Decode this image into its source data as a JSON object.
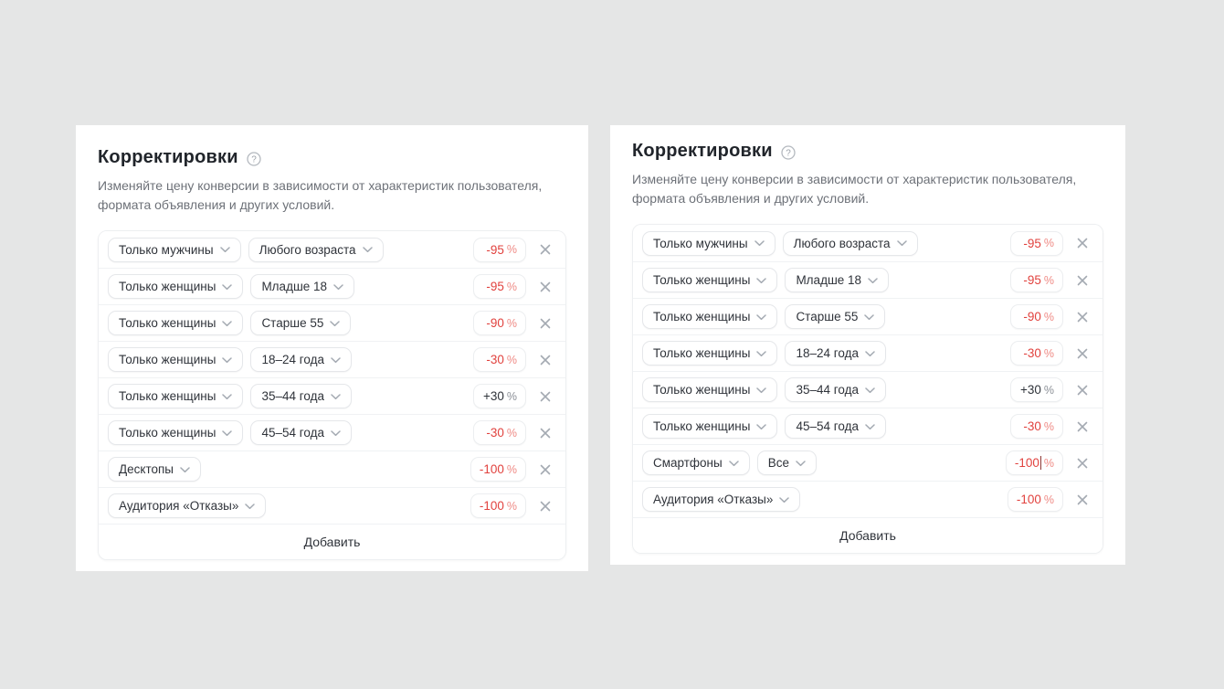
{
  "page": {
    "background": "#e5e6e6"
  },
  "ui": {
    "percent_suffix": "%",
    "colors": {
      "negative": "#e1423e",
      "positive": "#2f333a",
      "icon_gray": "#a4aab2"
    }
  },
  "panels": [
    {
      "title": "Корректировки",
      "help_icon": "question-circle-icon",
      "description": "Изменяйте цену конверсии в зависимости от характеристик пользователя, формата объявления и других условий.",
      "add_label": "Добавить",
      "rows": [
        {
          "chips": [
            "Только мужчины",
            "Любого возраста"
          ],
          "value": "-95",
          "sign": "negative",
          "focused": false
        },
        {
          "chips": [
            "Только женщины",
            "Младше 18"
          ],
          "value": "-95",
          "sign": "negative",
          "focused": false
        },
        {
          "chips": [
            "Только женщины",
            "Старше 55"
          ],
          "value": "-90",
          "sign": "negative",
          "focused": false
        },
        {
          "chips": [
            "Только женщины",
            "18–24 года"
          ],
          "value": "-30",
          "sign": "negative",
          "focused": false
        },
        {
          "chips": [
            "Только женщины",
            "35–44 года"
          ],
          "value": "+30",
          "sign": "positive",
          "focused": false
        },
        {
          "chips": [
            "Только женщины",
            "45–54 года"
          ],
          "value": "-30",
          "sign": "negative",
          "focused": false
        },
        {
          "chips": [
            "Десктопы"
          ],
          "value": "-100",
          "sign": "negative",
          "focused": false
        },
        {
          "chips": [
            "Аудитория «Отказы»"
          ],
          "value": "-100",
          "sign": "negative",
          "focused": false
        }
      ]
    },
    {
      "title": "Корректировки",
      "help_icon": "question-circle-icon",
      "description": "Изменяйте цену конверсии в зависимости от характеристик пользователя, формата объявления и других условий.",
      "add_label": "Добавить",
      "rows": [
        {
          "chips": [
            "Только мужчины",
            "Любого возраста"
          ],
          "value": "-95",
          "sign": "negative",
          "focused": false
        },
        {
          "chips": [
            "Только женщины",
            "Младше 18"
          ],
          "value": "-95",
          "sign": "negative",
          "focused": false
        },
        {
          "chips": [
            "Только женщины",
            "Старше 55"
          ],
          "value": "-90",
          "sign": "negative",
          "focused": false
        },
        {
          "chips": [
            "Только женщины",
            "18–24 года"
          ],
          "value": "-30",
          "sign": "negative",
          "focused": false
        },
        {
          "chips": [
            "Только женщины",
            "35–44 года"
          ],
          "value": "+30",
          "sign": "positive",
          "focused": false
        },
        {
          "chips": [
            "Только женщины",
            "45–54 года"
          ],
          "value": "-30",
          "sign": "negative",
          "focused": false
        },
        {
          "chips": [
            "Смартфоны",
            "Все"
          ],
          "value": "-100",
          "sign": "negative",
          "focused": true
        },
        {
          "chips": [
            "Аудитория «Отказы»"
          ],
          "value": "-100",
          "sign": "negative",
          "focused": false
        }
      ]
    }
  ]
}
